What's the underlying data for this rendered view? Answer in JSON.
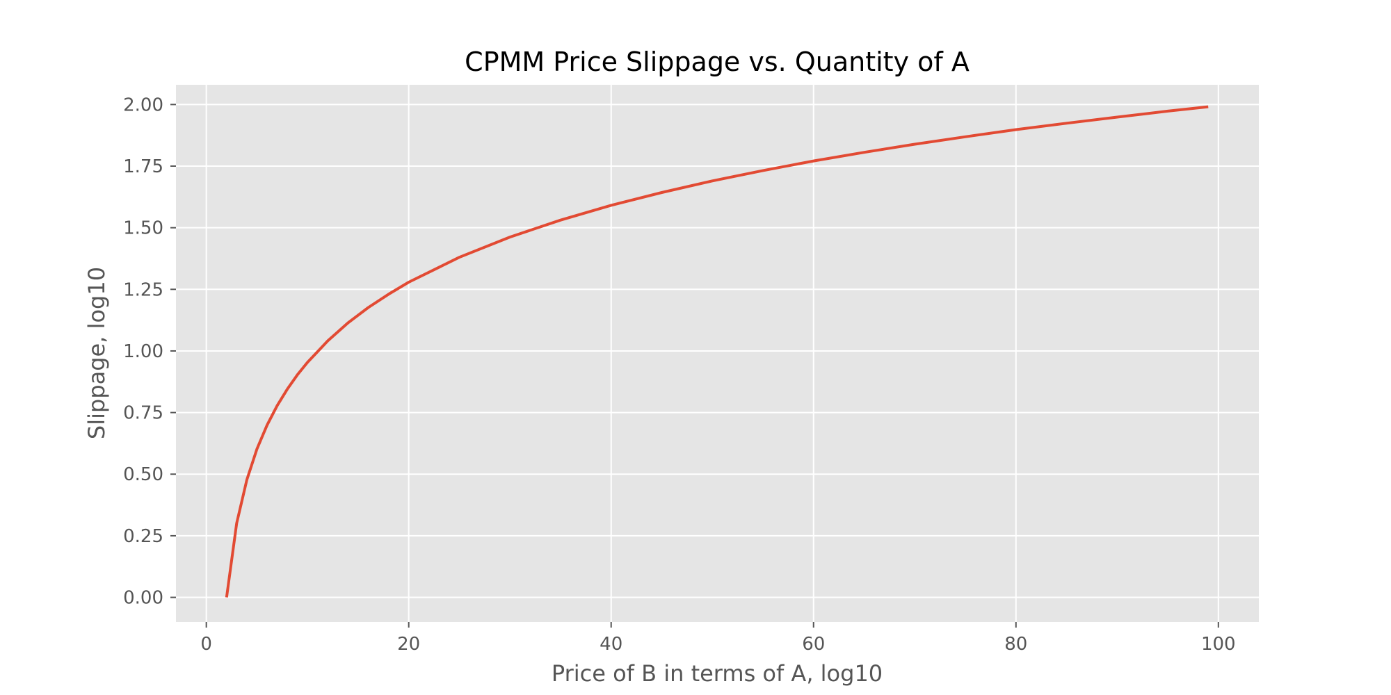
{
  "chart_data": {
    "type": "line",
    "title": "CPMM Price Slippage vs. Quantity of A",
    "xlabel": "Price of B in terms of A, log10",
    "ylabel": "Slippage, log10",
    "xlim": [
      -3,
      104
    ],
    "ylim": [
      -0.1,
      2.08
    ],
    "x_ticks": [
      0,
      20,
      40,
      60,
      80,
      100
    ],
    "y_ticks": [
      0.0,
      0.25,
      0.5,
      0.75,
      1.0,
      1.25,
      1.5,
      1.75,
      2.0
    ],
    "x_tick_labels": [
      "0",
      "20",
      "40",
      "60",
      "80",
      "100"
    ],
    "y_tick_labels": [
      "0.00",
      "0.25",
      "0.50",
      "0.75",
      "1.00",
      "1.25",
      "1.50",
      "1.75",
      "2.00"
    ],
    "grid": true,
    "colors": {
      "background": "#e5e5e5",
      "grid": "#ffffff",
      "line": "#e24a33"
    },
    "series": [
      {
        "x": [
          2,
          3,
          4,
          5,
          6,
          7,
          8,
          9,
          10,
          12,
          14,
          16,
          18,
          20,
          25,
          30,
          35,
          40,
          45,
          50,
          55,
          60,
          65,
          70,
          75,
          80,
          85,
          90,
          95,
          99
        ],
        "y": [
          0.0,
          0.301,
          0.477,
          0.602,
          0.699,
          0.778,
          0.845,
          0.903,
          0.954,
          1.041,
          1.114,
          1.176,
          1.23,
          1.279,
          1.38,
          1.462,
          1.531,
          1.591,
          1.643,
          1.69,
          1.732,
          1.771,
          1.806,
          1.839,
          1.869,
          1.898,
          1.924,
          1.949,
          1.973,
          1.991
        ]
      }
    ]
  }
}
